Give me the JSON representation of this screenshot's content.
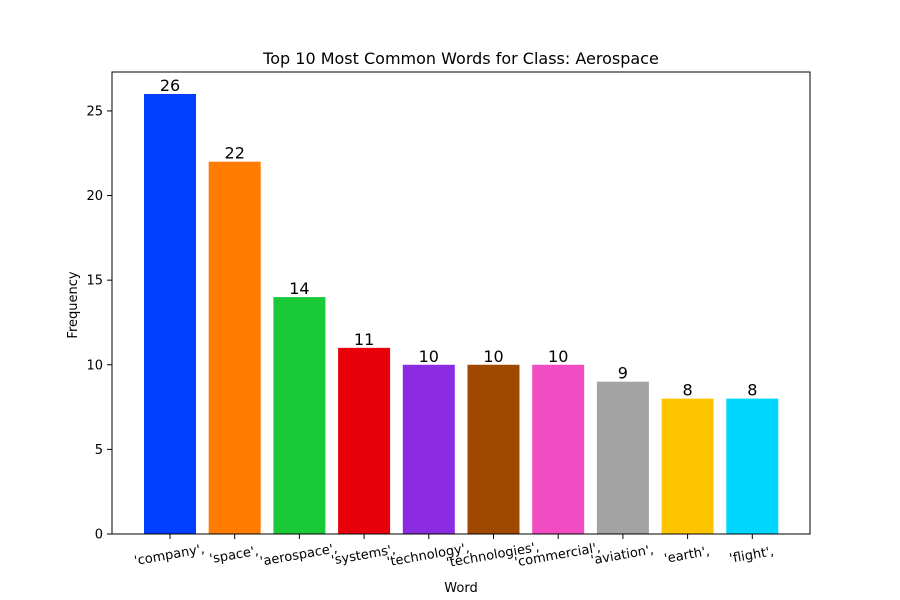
{
  "chart_data": {
    "type": "bar",
    "title": "Top 10 Most Common Words for Class: Aerospace",
    "xlabel": "Word",
    "ylabel": "Frequency",
    "categories": [
      "'company',",
      "'space',",
      "'aerospace',",
      "'systems',",
      "'technology',",
      "'technologies',",
      "'commercial',",
      "'aviation',",
      "'earth',",
      "'flight',"
    ],
    "values": [
      26,
      22,
      14,
      11,
      10,
      10,
      10,
      9,
      8,
      8
    ],
    "colors": [
      "#023eff",
      "#ff7c00",
      "#1ac938",
      "#e8000b",
      "#8b2be2",
      "#9f4800",
      "#f14cc1",
      "#a3a3a3",
      "#ffc400",
      "#00d7ff"
    ],
    "ylim": [
      0,
      27.3
    ],
    "yticks": [
      0,
      5,
      10,
      15,
      20,
      25
    ],
    "grid": false,
    "legend": "none"
  }
}
